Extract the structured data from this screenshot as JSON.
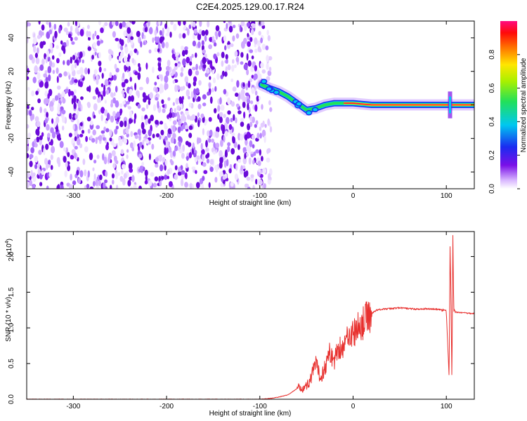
{
  "title": "C2E4.2025.129.00.17.R24",
  "colors": {
    "snr_line": "#e8312f",
    "spectral_purple": "#7a10e8",
    "axis": "#000000",
    "background": "#ffffff"
  },
  "chart_data": [
    {
      "type": "heatmap",
      "title": "C2E4.2025.129.00.17.R24",
      "xlabel": "Height of straight line (km)",
      "ylabel": "Frequency (Hz)",
      "xlim": [
        -350,
        130
      ],
      "ylim": [
        -50,
        50
      ],
      "x_ticks": [
        -300,
        -200,
        -100,
        0,
        100
      ],
      "x_tick_labels": [
        "-300",
        "-200",
        "-100",
        "0",
        "100"
      ],
      "y_ticks": [
        -40,
        -20,
        0,
        20,
        40
      ],
      "y_tick_labels": [
        "-40",
        "-20",
        "0",
        "20",
        "40"
      ],
      "colorbar": {
        "label": "Normalized spectral amplitude",
        "range": [
          0,
          1
        ],
        "ticks": [
          0.0,
          0.2,
          0.4,
          0.6,
          0.8
        ],
        "tick_labels": [
          "0.0",
          "0.2",
          "0.4",
          "0.6",
          "0.8"
        ],
        "colormap": "rainbow (purple→blue→cyan→green→yellow→red→magenta)"
      },
      "features": {
        "noise_region_x": [
          -350,
          -88
        ],
        "signal_trace": [
          {
            "x": -98,
            "f": 12
          },
          {
            "x": -90,
            "f": 10
          },
          {
            "x": -80,
            "f": 8
          },
          {
            "x": -70,
            "f": 5
          },
          {
            "x": -60,
            "f": 1
          },
          {
            "x": -50,
            "f": -3
          },
          {
            "x": -40,
            "f": -2
          },
          {
            "x": -30,
            "f": 0
          },
          {
            "x": -20,
            "f": 1
          },
          {
            "x": -10,
            "f": 1
          },
          {
            "x": 0,
            "f": 1
          },
          {
            "x": 20,
            "f": 0
          },
          {
            "x": 60,
            "f": 0
          },
          {
            "x": 100,
            "f": 0
          },
          {
            "x": 130,
            "f": 0
          }
        ],
        "spike_x": 104
      }
    },
    {
      "type": "line",
      "xlabel": "Height of straight line (km)",
      "ylabel": "SNR (10 * v/v)",
      "y_multiplier_label": "(x10",
      "y_multiplier_exp": "4",
      "y_multiplier_close": ")",
      "xlim": [
        -350,
        130
      ],
      "ylim": [
        0,
        2.35
      ],
      "x_ticks": [
        -300,
        -200,
        -100,
        0,
        100
      ],
      "x_tick_labels": [
        "-300",
        "-200",
        "-100",
        "0",
        "100"
      ],
      "y_ticks": [
        0,
        0.5,
        1.0,
        1.5,
        2.0
      ],
      "y_tick_labels": [
        "0.0",
        "0.5",
        "1.0",
        "1.5",
        "2.0"
      ],
      "series": [
        {
          "x": [
            -350,
            -150,
            -100,
            -90,
            -80,
            -70,
            -60,
            -50,
            -45,
            -40,
            -35,
            -30,
            -25,
            -20,
            -15,
            -10,
            -5,
            0,
            5,
            10,
            15,
            20,
            25,
            30,
            40,
            50,
            60,
            70,
            80,
            90,
            95,
            100,
            103,
            104,
            105,
            106,
            107,
            108,
            110,
            120,
            130
          ],
          "y": [
            0.0,
            0.0,
            0.0,
            0.01,
            0.03,
            0.06,
            0.15,
            0.18,
            0.3,
            0.5,
            0.3,
            0.45,
            0.65,
            0.55,
            0.75,
            0.7,
            0.95,
            0.9,
            1.0,
            1.05,
            1.15,
            1.2,
            1.25,
            1.26,
            1.27,
            1.28,
            1.27,
            1.26,
            1.27,
            1.26,
            1.25,
            1.24,
            0.3,
            2.15,
            1.45,
            0.2,
            2.3,
            1.25,
            1.22,
            1.21,
            1.2
          ]
        }
      ]
    }
  ]
}
